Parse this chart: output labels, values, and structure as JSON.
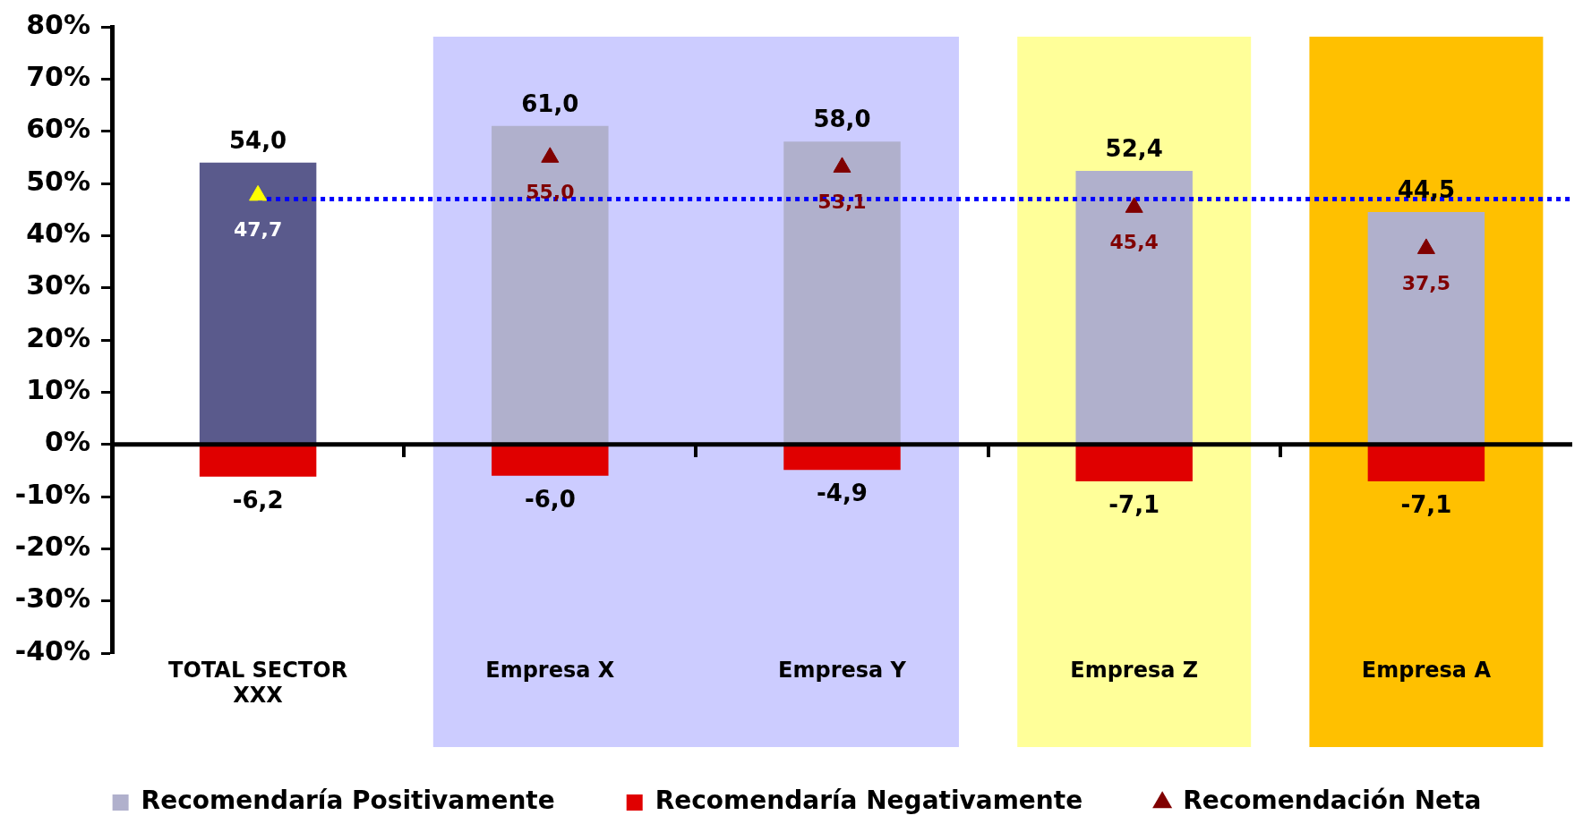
{
  "chart_data": {
    "type": "bar",
    "stacked": true,
    "categories": [
      "TOTAL SECTOR XXX",
      "Empresa X",
      "Empresa Y",
      "Empresa Z",
      "Empresa A"
    ],
    "series": [
      {
        "name": "Recomendaría Positivamente",
        "color": "#b0b0cc",
        "colors": [
          "#5a5a8c",
          "#b0b0cc",
          "#b0b0cc",
          "#b0b0cc",
          "#b0b0cc"
        ],
        "values": [
          54.0,
          61.0,
          58.0,
          52.4,
          44.5
        ],
        "value_labels": [
          "54,0",
          "61,0",
          "58,0",
          "52,4",
          "44,5"
        ]
      },
      {
        "name": "Recomendaría Negativamente",
        "color": "#e00000",
        "values": [
          -6.2,
          -6.0,
          -4.9,
          -7.1,
          -7.1
        ],
        "value_labels": [
          "-6,2",
          "-6,0",
          "-4,9",
          "-7,1",
          "-7,1"
        ]
      },
      {
        "name": "Recomendación Neta",
        "type": "scatter",
        "color": "#800000",
        "colors": [
          "#ffff00",
          "#800000",
          "#800000",
          "#800000",
          "#800000"
        ],
        "x": [
          "TOTAL SECTOR XXX",
          "Empresa X",
          "Empresa Y",
          "Empresa Z",
          "Empresa A"
        ],
        "values": [
          47.7,
          55.0,
          53.1,
          45.4,
          37.5
        ],
        "value_labels": [
          "47,7",
          "55,0",
          "53,1",
          "45,4",
          "37,5"
        ]
      }
    ],
    "ylim": [
      -40,
      80
    ],
    "yticks": [
      {
        "value": -40,
        "label": "-40%"
      },
      {
        "value": -30,
        "label": "-30%"
      },
      {
        "value": -20,
        "label": "-20%"
      },
      {
        "value": -10,
        "label": "-10%"
      },
      {
        "value": 0,
        "label": "0%"
      },
      {
        "value": 10,
        "label": "10%"
      },
      {
        "value": 20,
        "label": "20%"
      },
      {
        "value": 30,
        "label": "30%"
      },
      {
        "value": 40,
        "label": "40%"
      },
      {
        "value": 50,
        "label": "50%"
      },
      {
        "value": 60,
        "label": "60%"
      },
      {
        "value": 70,
        "label": "70%"
      },
      {
        "value": 80,
        "label": "80%"
      }
    ],
    "ref_lines": [
      {
        "axis": "y",
        "value": 0,
        "color": "#000000",
        "line_style": "solid"
      },
      {
        "axis": "y",
        "value": 47,
        "color": "#0000ff",
        "line_style": "dotted"
      }
    ],
    "bands": [
      {
        "axis": "x",
        "from": "Empresa X",
        "to": "Empresa Y",
        "color": "#ccccff"
      },
      {
        "axis": "x",
        "from": "Empresa Z",
        "to": "Empresa Z",
        "color": "#ffff99"
      },
      {
        "axis": "x",
        "from": "Empresa A",
        "to": "Empresa A",
        "color": "#ffc000"
      }
    ],
    "marker": "triangle",
    "legend": "bottom",
    "grid": false
  }
}
